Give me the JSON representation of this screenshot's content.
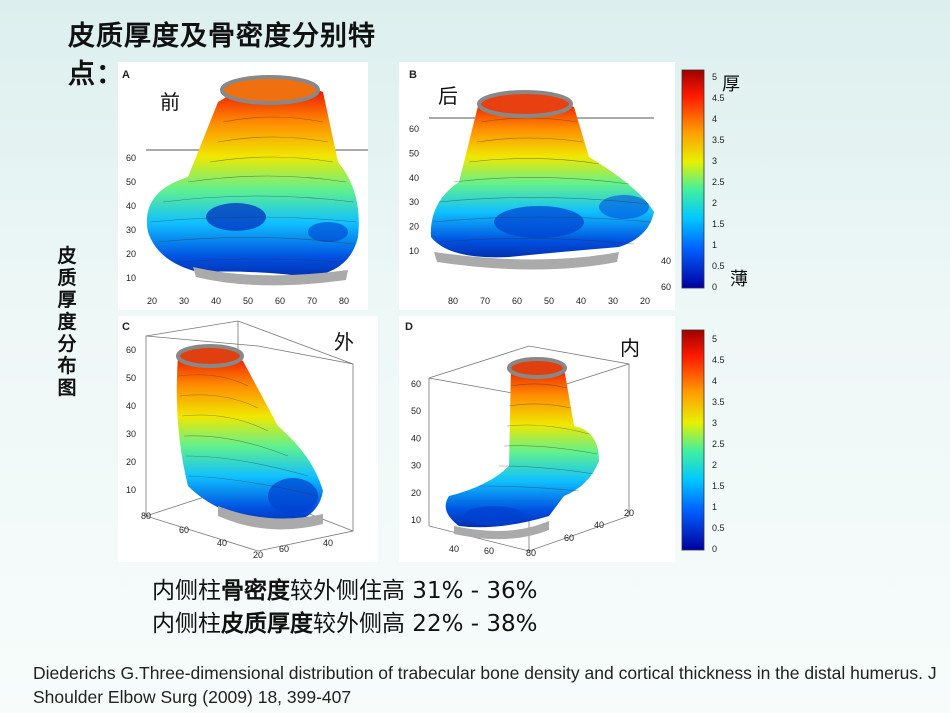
{
  "title": "皮质厚度及骨密度分别特点：",
  "vertical_label": "皮质厚度分布图",
  "panels": [
    {
      "letter": "A",
      "label": "前",
      "x_ticks": [
        "20",
        "30",
        "40",
        "50",
        "60",
        "70",
        "80"
      ],
      "y_ticks": [
        "60",
        "50",
        "40",
        "30",
        "20",
        "10"
      ],
      "y2_ticks": [
        "60",
        "50",
        "40",
        "30"
      ]
    },
    {
      "letter": "B",
      "label": "后",
      "x_ticks": [
        "80",
        "70",
        "60",
        "50",
        "40",
        "30",
        "20"
      ],
      "y_ticks": [
        "60",
        "50",
        "40",
        "30",
        "20",
        "10"
      ],
      "y2_ticks": [
        "40",
        "60"
      ]
    },
    {
      "letter": "C",
      "label": "外",
      "y_ticks": [
        "60",
        "50",
        "40",
        "30",
        "20",
        "10"
      ],
      "floor_ticks": [
        "80",
        "60",
        "40",
        "20",
        "60",
        "40"
      ]
    },
    {
      "letter": "D",
      "label": "内",
      "y_ticks": [
        "60",
        "50",
        "40",
        "30",
        "20",
        "10"
      ],
      "floor_ticks": [
        "20",
        "40",
        "60",
        "40",
        "60",
        "80"
      ]
    }
  ],
  "colorbar_top": {
    "ticks": [
      "5",
      "4.5",
      "4",
      "3.5",
      "3",
      "2.5",
      "2",
      "1.5",
      "1",
      "0.5",
      "0"
    ],
    "thick_label": "厚",
    "thin_label": "薄"
  },
  "colorbar_bottom": {
    "ticks": [
      "5",
      "4.5",
      "4",
      "3.5",
      "3",
      "2.5",
      "2",
      "1.5",
      "1",
      "0.5",
      "0"
    ]
  },
  "summary": [
    {
      "prefix": "内侧柱",
      "bold": "骨密度",
      "suffix": "较外侧住高 31% - 36%"
    },
    {
      "prefix": "内侧柱",
      "bold": "皮质厚度",
      "suffix": "较外侧高 22% - 38%"
    }
  ],
  "citation": "Diederichs  G.Three-dimensional distribution of trabecular bone density and cortical thickness in the distal humerus. J Shoulder Elbow Surg (2009) 18, 399-407"
}
